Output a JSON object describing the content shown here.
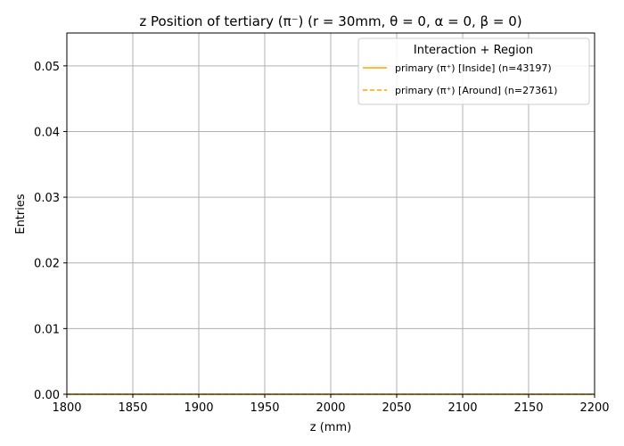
{
  "chart_data": {
    "type": "line",
    "title": "z Position of tertiary (π⁻) (r = 30mm, θ = 0, α = 0, β = 0)",
    "xlabel": "z (mm)",
    "ylabel": "Entries",
    "xlim": [
      1800,
      2200
    ],
    "ylim": [
      0,
      0.055
    ],
    "xticks": [
      1800,
      1850,
      1900,
      1950,
      2000,
      2050,
      2100,
      2150,
      2200
    ],
    "yticks": [
      0.0,
      0.01,
      0.02,
      0.03,
      0.04,
      0.05
    ],
    "ytick_labels": [
      "0.00",
      "0.01",
      "0.02",
      "0.03",
      "0.04",
      "0.05"
    ],
    "grid": true,
    "legend": {
      "title": "Interaction + Region",
      "placement": "top-right"
    },
    "series": [
      {
        "name": "primary (π⁺) [Inside] (n=43197)",
        "color": "#ffa500",
        "style": "solid",
        "x": [
          1800,
          2200
        ],
        "y": [
          0,
          0
        ]
      },
      {
        "name": "primary (π⁺) [Around] (n=27361)",
        "color": "#ffa500",
        "style": "dashed",
        "x": [
          1800,
          2200
        ],
        "y": [
          0,
          0
        ]
      }
    ]
  }
}
